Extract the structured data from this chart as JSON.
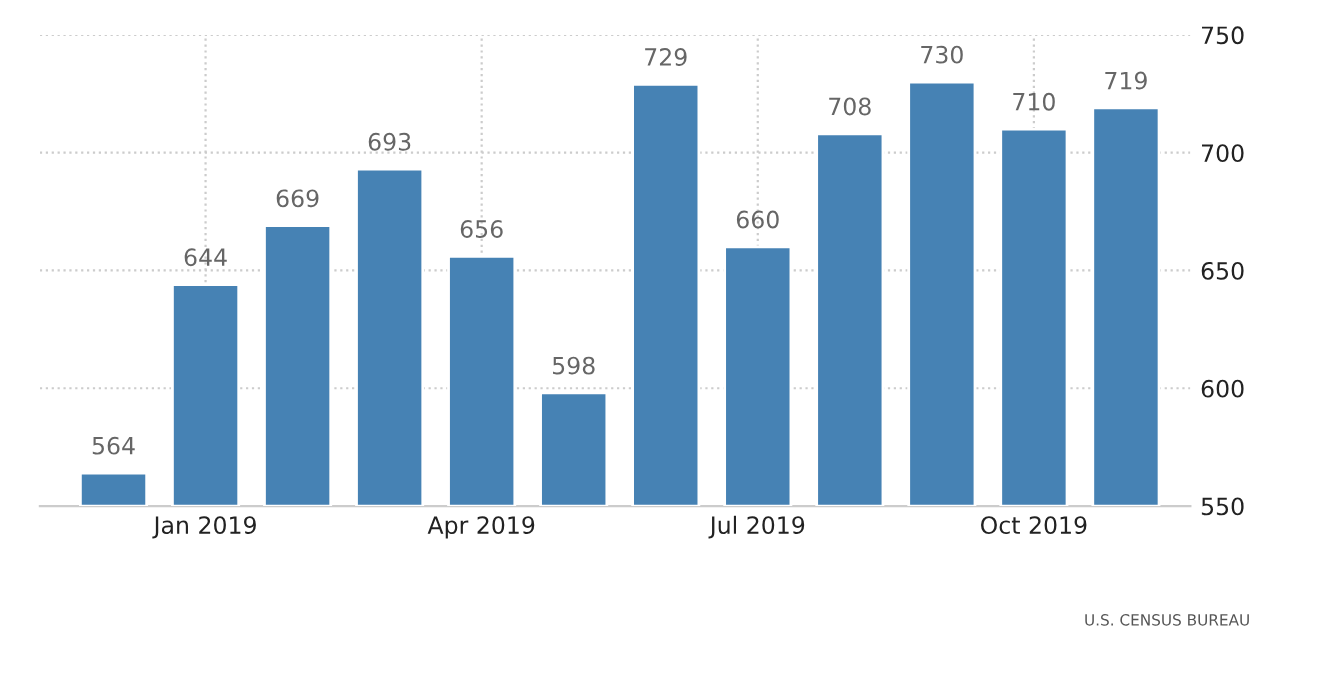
{
  "chart_data": {
    "type": "bar",
    "categories": [
      null,
      "Jan 2019",
      null,
      null,
      "Apr 2019",
      null,
      null,
      "Jul 2019",
      null,
      null,
      "Oct 2019",
      null
    ],
    "values": [
      564,
      644,
      669,
      693,
      656,
      598,
      729,
      660,
      708,
      730,
      710,
      719
    ],
    "color": "#4682b4",
    "ylim": [
      550,
      750
    ],
    "yticks": [
      550,
      600,
      650,
      700,
      750
    ],
    "grid": true,
    "data_labels": true,
    "annotations": [
      "U.S. CENSUS BUREAU"
    ]
  }
}
